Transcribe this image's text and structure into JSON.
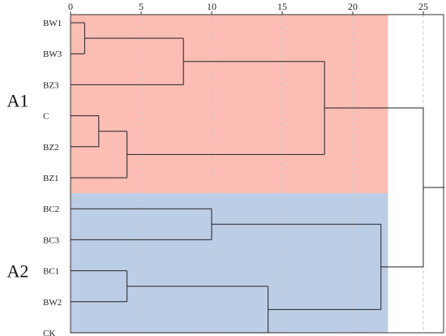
{
  "chart_data": {
    "type": "dendrogram",
    "x_axis": {
      "ticks": [
        0,
        5,
        10,
        15,
        20,
        25
      ],
      "range": [
        0,
        26.5
      ],
      "grid": "dashed-vertical"
    },
    "leaves": [
      "BW1",
      "BW3",
      "BZ3",
      "C",
      "BZ2",
      "BZ1",
      "BC2",
      "BC3",
      "BC1",
      "BW2",
      "CK"
    ],
    "groups": [
      {
        "label": "A1",
        "color": "#fbbdb4",
        "leaves": [
          "BW1",
          "BW3",
          "BZ3",
          "C",
          "BZ2",
          "BZ1"
        ]
      },
      {
        "label": "A2",
        "color": "#bccde6",
        "leaves": [
          "BC2",
          "BC3",
          "BC1",
          "BW2",
          "CK"
        ]
      }
    ],
    "merges": [
      {
        "members": [
          "BW1",
          "BW3"
        ],
        "height": 1
      },
      {
        "members": [
          "BW1+BW3",
          "BZ3"
        ],
        "height": 8
      },
      {
        "members": [
          "C",
          "BZ2"
        ],
        "height": 2
      },
      {
        "members": [
          "C+BZ2",
          "BZ1"
        ],
        "height": 4
      },
      {
        "members": [
          "BW1+BW3+BZ3",
          "C+BZ2+BZ1"
        ],
        "height": 18
      },
      {
        "members": [
          "BC2",
          "BC3"
        ],
        "height": 10
      },
      {
        "members": [
          "BC1",
          "BW2"
        ],
        "height": 4
      },
      {
        "members": [
          "BC1+BW2",
          "CK"
        ],
        "height": 14
      },
      {
        "members": [
          "BC2+BC3",
          "BC1+BW2+CK"
        ],
        "height": 22
      },
      {
        "members": [
          "A1",
          "A2"
        ],
        "height": 25
      }
    ]
  }
}
